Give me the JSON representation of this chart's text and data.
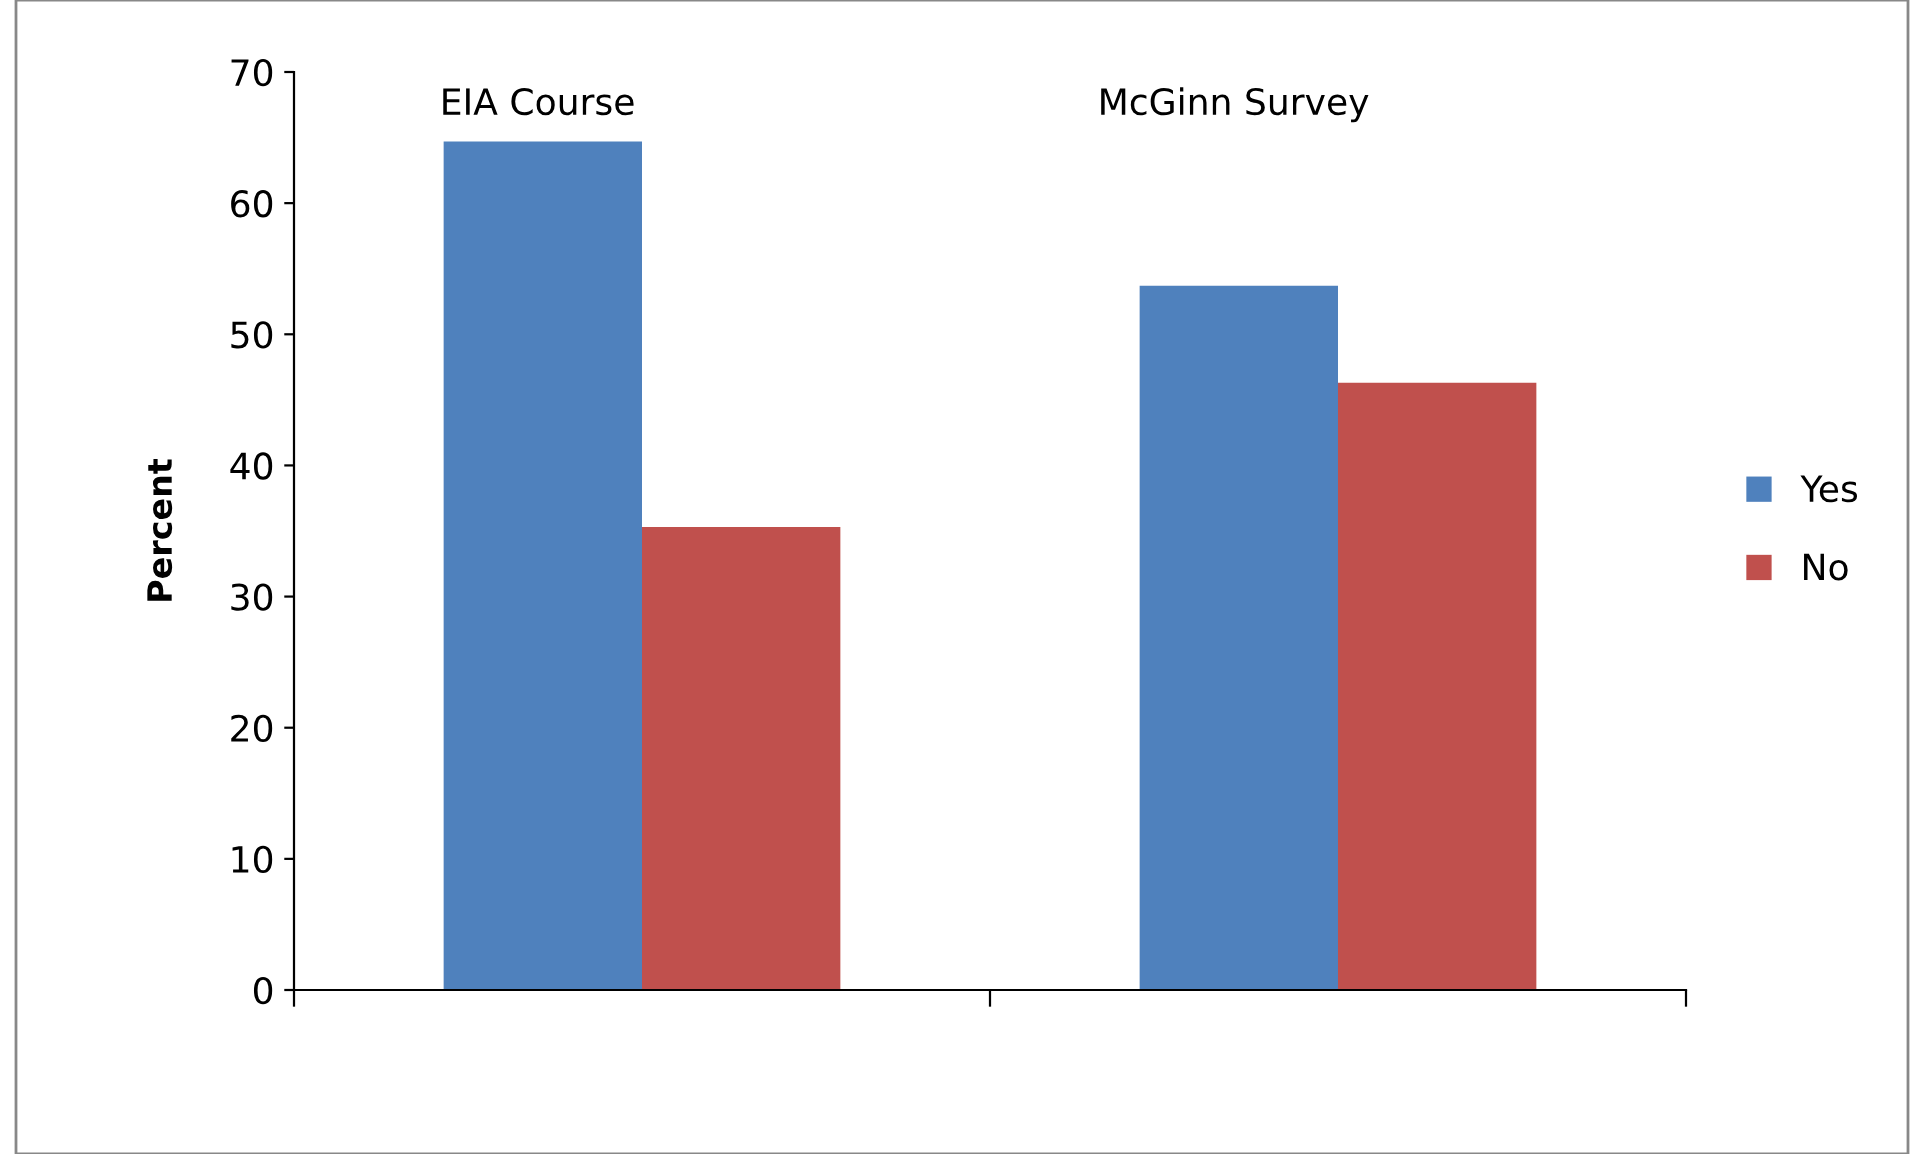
{
  "chart_data": {
    "type": "bar",
    "ylabel": "Percent",
    "categories": [
      "EIA Course",
      "McGinn Survey"
    ],
    "series": [
      {
        "name": "Yes",
        "color": "#4f81bd",
        "values": [
          64.7,
          53.7
        ]
      },
      {
        "name": "No",
        "color": "#c0504d",
        "values": [
          35.3,
          46.3
        ]
      }
    ],
    "ylim": [
      0,
      70
    ],
    "yticks": [
      0,
      10,
      20,
      30,
      40,
      50,
      60,
      70
    ],
    "grid": false,
    "legend": "right",
    "tick_labels": "y"
  }
}
